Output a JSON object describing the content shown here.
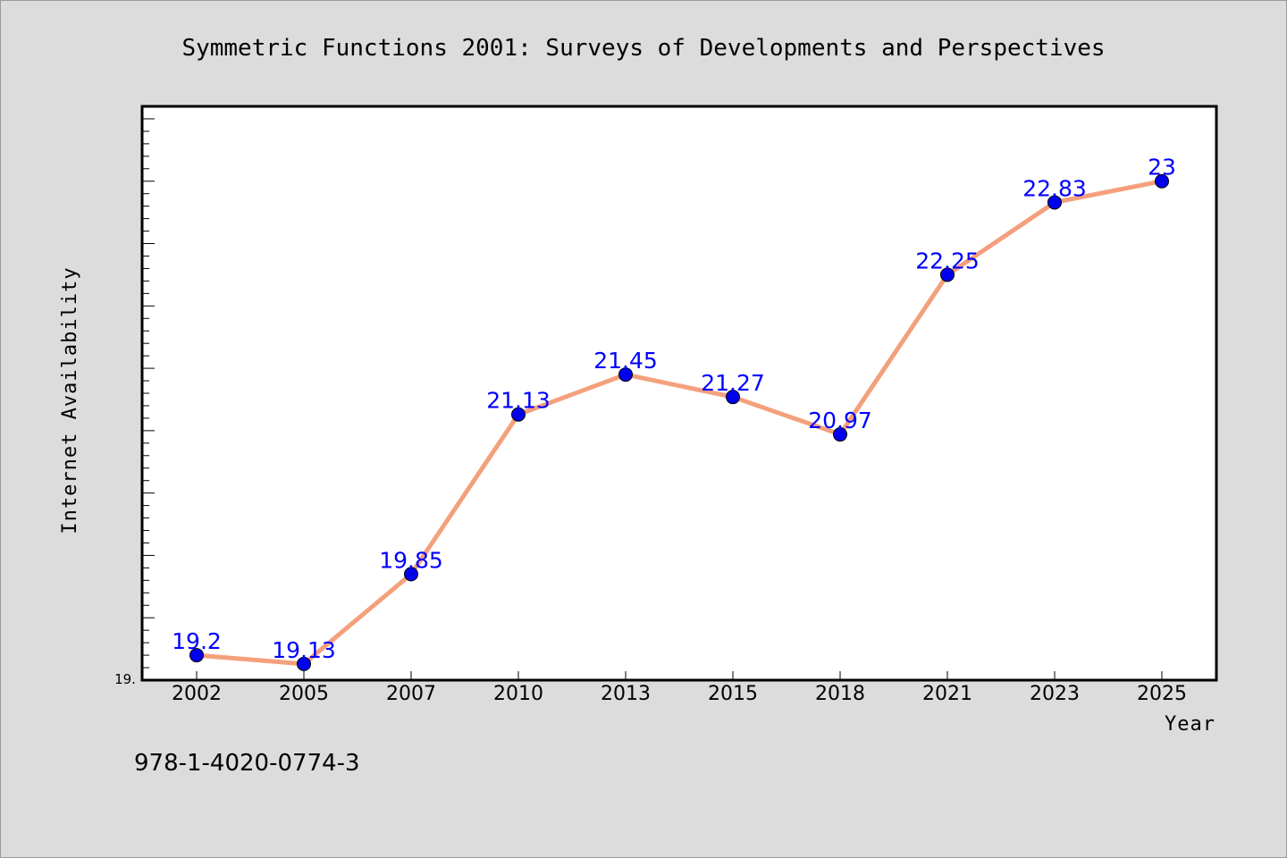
{
  "chart_data": {
    "type": "line",
    "title": "Symmetric Functions 2001: Surveys of Developments and Perspectives",
    "xlabel": "Year",
    "ylabel": "Internet Availability",
    "categories": [
      "2002",
      "2005",
      "2007",
      "2010",
      "2013",
      "2015",
      "2018",
      "2021",
      "2023",
      "2025"
    ],
    "series": [
      {
        "values": [
          19.2,
          19.13,
          19.85,
          21.13,
          21.45,
          21.27,
          20.97,
          22.25,
          22.83,
          23
        ]
      }
    ],
    "data_labels": [
      "19.2",
      "19.13",
      "19.85",
      "21.13",
      "21.45",
      "21.27",
      "20.97",
      "22.25",
      "22.83",
      "23"
    ],
    "ylim": [
      19.0,
      23.6
    ],
    "y_axis_min_label": "19.",
    "grid": false,
    "legend": "none"
  },
  "footer_text": "978-1-4020-0774-3",
  "colors": {
    "background": "#dcdcdc",
    "plot_background": "#ffffff",
    "line": "#f4a07c",
    "marker": "#0000ee",
    "data_label": "#0000ff"
  }
}
